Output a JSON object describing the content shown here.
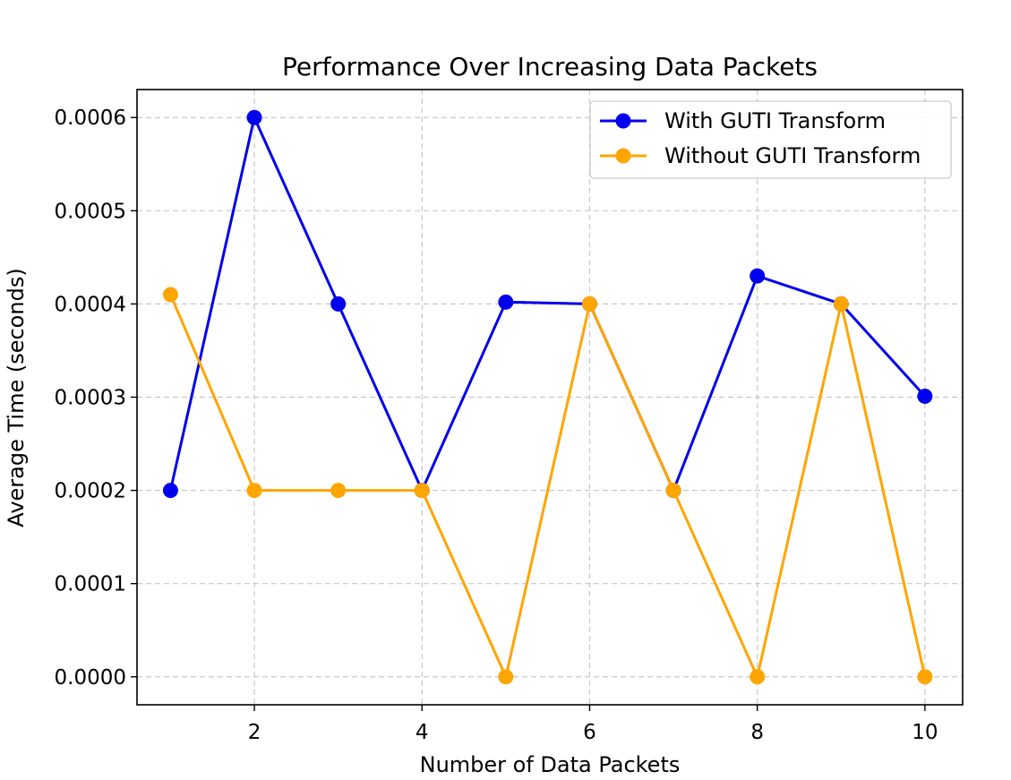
{
  "chart_data": {
    "type": "line",
    "title": "Performance Over Increasing Data Packets",
    "xlabel": "Number of Data Packets",
    "ylabel": "Average Time (seconds)",
    "x": [
      1,
      2,
      3,
      4,
      5,
      6,
      7,
      8,
      9,
      10
    ],
    "xlim": [
      0.6,
      10.45
    ],
    "ylim": [
      -3e-05,
      0.00063
    ],
    "xticks": [
      2,
      4,
      6,
      8,
      10
    ],
    "xtick_labels": [
      "2",
      "4",
      "6",
      "8",
      "10"
    ],
    "yticks": [
      0,
      0.0001,
      0.0002,
      0.0003,
      0.0004,
      0.0005,
      0.0006
    ],
    "ytick_labels": [
      "0.0000",
      "0.0001",
      "0.0002",
      "0.0003",
      "0.0004",
      "0.0005",
      "0.0006"
    ],
    "grid": true,
    "legend_position": "top-right",
    "series": [
      {
        "name": "With GUTI Transform",
        "color": "#0000ee",
        "values": [
          0.0002,
          0.0006,
          0.0004,
          0.0002,
          0.000402,
          0.0004,
          0.0002,
          0.00043,
          0.0004,
          0.000301
        ]
      },
      {
        "name": "Without GUTI Transform",
        "color": "#ffa500",
        "values": [
          0.00041,
          0.0002,
          0.0002,
          0.0002,
          0.0,
          0.0004,
          0.0002,
          0.0,
          0.0004,
          0.0
        ]
      }
    ]
  }
}
